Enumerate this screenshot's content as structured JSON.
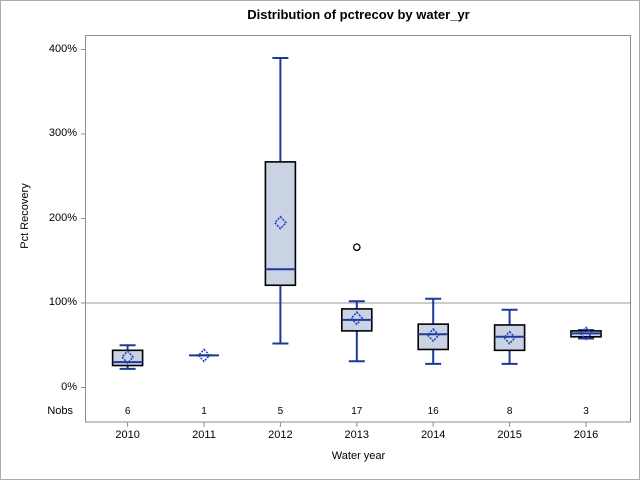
{
  "chart_data": {
    "type": "boxplot",
    "title": "Distribution of pctrecov by water_yr",
    "xlabel": "Water year",
    "ylabel": "Pct Recovery",
    "nobs_row_label": "Nobs",
    "categories": [
      "2010",
      "2011",
      "2012",
      "2013",
      "2014",
      "2015",
      "2016"
    ],
    "nobs": [
      6,
      1,
      5,
      17,
      16,
      8,
      3
    ],
    "y_axis": {
      "range": [
        0,
        417
      ],
      "ticks": [
        0,
        100,
        200,
        300,
        400
      ],
      "tick_labels": [
        "0%",
        "100%",
        "200%",
        "300%",
        "400%"
      ]
    },
    "reference_line_y": 100,
    "grid": "single-reference-line-at-100",
    "legend": "none",
    "series": [
      {
        "category": "2010",
        "n": 6,
        "whisker_low": 22,
        "q1": 26,
        "median": 30,
        "mean": 36,
        "q3": 44,
        "whisker_high": 50,
        "outliers": []
      },
      {
        "category": "2011",
        "n": 1,
        "whisker_low": 38,
        "q1": 38,
        "median": 38,
        "mean": 38,
        "q3": 38,
        "whisker_high": 38,
        "outliers": []
      },
      {
        "category": "2012",
        "n": 5,
        "whisker_low": 52,
        "q1": 121,
        "median": 140,
        "mean": 195,
        "q3": 267,
        "whisker_high": 390,
        "outliers": []
      },
      {
        "category": "2013",
        "n": 17,
        "whisker_low": 31,
        "q1": 67,
        "median": 80,
        "mean": 82,
        "q3": 93,
        "whisker_high": 102,
        "outliers": [
          166
        ]
      },
      {
        "category": "2014",
        "n": 16,
        "whisker_low": 28,
        "q1": 45,
        "median": 63,
        "mean": 62,
        "q3": 75,
        "whisker_high": 105,
        "outliers": []
      },
      {
        "category": "2015",
        "n": 8,
        "whisker_low": 28,
        "q1": 44,
        "median": 60,
        "mean": 59,
        "q3": 74,
        "whisker_high": 92,
        "outliers": []
      },
      {
        "category": "2016",
        "n": 3,
        "whisker_low": 58,
        "q1": 60,
        "median": 64,
        "mean": 64,
        "q3": 67,
        "whisker_high": 68,
        "outliers": []
      }
    ],
    "colors": {
      "box_fill": "#c9d3e3",
      "box_border": "#000000",
      "whisker": "#1c3a96",
      "median_line": "#1c3a96",
      "mean_marker": "#2841c0",
      "outlier": "#000000",
      "reference_line": "#adadad",
      "frame": "#8c8c8c",
      "text": "#000000",
      "background": "#ffffff"
    }
  }
}
